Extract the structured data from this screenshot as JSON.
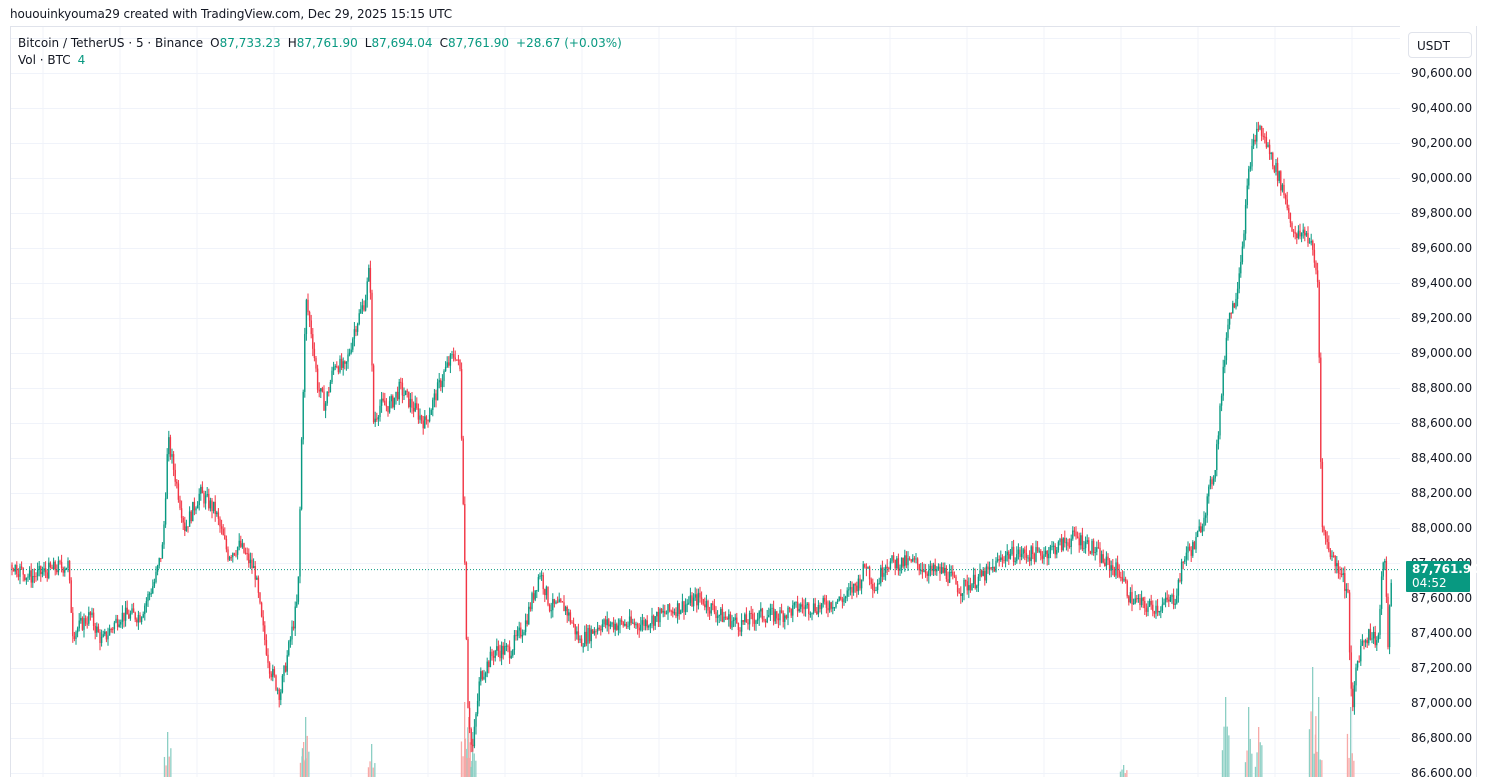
{
  "caption": "hououinkyouma29 created with TradingView.com, Dec 29, 2025 15:15 UTC",
  "legend": {
    "symbol": "Bitcoin / TetherUS · 5 · Binance",
    "open_label": "O",
    "open": "87,733.23",
    "high_label": "H",
    "high": "87,761.90",
    "low_label": "L",
    "low": "87,694.04",
    "close_label": "C",
    "close": "87,761.90",
    "change": "+28.67 (+0.03%)",
    "volume_label": "Vol · BTC",
    "volume_value": "4"
  },
  "axis": {
    "currency": "USDT",
    "ticks": [
      "90,600.00",
      "90,400.00",
      "90,200.00",
      "90,000.00",
      "89,800.00",
      "89,600.00",
      "89,400.00",
      "89,200.00",
      "89,000.00",
      "88,800.00",
      "88,600.00",
      "88,400.00",
      "88,200.00",
      "88,000.00",
      "87,800.00",
      "87,600.00",
      "87,400.00",
      "87,200.00",
      "87,000.00",
      "86,800.00",
      "86,600.00"
    ]
  },
  "last_price": {
    "price": "87,761.90",
    "countdown": "04:52"
  },
  "colors": {
    "up": "#089981",
    "down": "#F23645",
    "up_vol": "#8ccfc4",
    "down_vol": "#f7a9a7",
    "grid": "#f0f3fa",
    "last_line": "#089981"
  },
  "chart_data": {
    "type": "candlestick",
    "title": "Bitcoin / TetherUS · 5 · Binance",
    "xlabel": "",
    "ylabel": "USDT",
    "ylim": [
      86600,
      90700
    ],
    "grid": true,
    "last_price": 87761.9,
    "ohlc_last": {
      "open": 87733.23,
      "high": 87761.9,
      "low": 87694.04,
      "close": 87761.9
    },
    "price_path_anchors": [
      [
        12,
        87790
      ],
      [
        30,
        87720
      ],
      [
        50,
        87760
      ],
      [
        68,
        87790
      ],
      [
        73,
        87400
      ],
      [
        90,
        87500
      ],
      [
        102,
        87350
      ],
      [
        120,
        87500
      ],
      [
        140,
        87500
      ],
      [
        155,
        87700
      ],
      [
        163,
        87900
      ],
      [
        168,
        88500
      ],
      [
        175,
        88300
      ],
      [
        185,
        88000
      ],
      [
        200,
        88200
      ],
      [
        215,
        88100
      ],
      [
        228,
        87850
      ],
      [
        240,
        87900
      ],
      [
        255,
        87750
      ],
      [
        262,
        87450
      ],
      [
        270,
        87200
      ],
      [
        280,
        87050
      ],
      [
        290,
        87350
      ],
      [
        298,
        87600
      ],
      [
        302,
        88600
      ],
      [
        306,
        89300
      ],
      [
        312,
        89100
      ],
      [
        318,
        88800
      ],
      [
        325,
        88700
      ],
      [
        335,
        88950
      ],
      [
        345,
        88900
      ],
      [
        355,
        89150
      ],
      [
        365,
        89300
      ],
      [
        370,
        89500
      ],
      [
        373,
        88600
      ],
      [
        380,
        88700
      ],
      [
        390,
        88700
      ],
      [
        400,
        88800
      ],
      [
        412,
        88700
      ],
      [
        425,
        88600
      ],
      [
        435,
        88750
      ],
      [
        445,
        88900
      ],
      [
        455,
        89000
      ],
      [
        460,
        88900
      ],
      [
        464,
        88000
      ],
      [
        468,
        87000
      ],
      [
        472,
        86700
      ],
      [
        480,
        87150
      ],
      [
        495,
        87300
      ],
      [
        510,
        87300
      ],
      [
        525,
        87450
      ],
      [
        540,
        87750
      ],
      [
        550,
        87550
      ],
      [
        565,
        87550
      ],
      [
        580,
        87350
      ],
      [
        600,
        87450
      ],
      [
        620,
        87450
      ],
      [
        640,
        87450
      ],
      [
        660,
        87500
      ],
      [
        680,
        87550
      ],
      [
        700,
        87600
      ],
      [
        720,
        87500
      ],
      [
        740,
        87450
      ],
      [
        760,
        87500
      ],
      [
        780,
        87500
      ],
      [
        800,
        87550
      ],
      [
        820,
        87550
      ],
      [
        845,
        87600
      ],
      [
        860,
        87700
      ],
      [
        866,
        87800
      ],
      [
        875,
        87650
      ],
      [
        885,
        87800
      ],
      [
        900,
        87800
      ],
      [
        915,
        87800
      ],
      [
        930,
        87750
      ],
      [
        945,
        87750
      ],
      [
        960,
        87650
      ],
      [
        975,
        87700
      ],
      [
        990,
        87750
      ],
      [
        1005,
        87850
      ],
      [
        1020,
        87850
      ],
      [
        1040,
        87850
      ],
      [
        1060,
        87900
      ],
      [
        1075,
        87950
      ],
      [
        1090,
        87900
      ],
      [
        1105,
        87800
      ],
      [
        1120,
        87750
      ],
      [
        1130,
        87600
      ],
      [
        1145,
        87550
      ],
      [
        1160,
        87550
      ],
      [
        1175,
        87600
      ],
      [
        1185,
        87850
      ],
      [
        1195,
        87900
      ],
      [
        1205,
        88100
      ],
      [
        1215,
        88350
      ],
      [
        1222,
        88800
      ],
      [
        1228,
        89200
      ],
      [
        1235,
        89300
      ],
      [
        1242,
        89600
      ],
      [
        1250,
        90100
      ],
      [
        1258,
        90300
      ],
      [
        1266,
        90200
      ],
      [
        1276,
        90050
      ],
      [
        1285,
        89900
      ],
      [
        1295,
        89650
      ],
      [
        1305,
        89700
      ],
      [
        1312,
        89600
      ],
      [
        1318,
        89400
      ],
      [
        1322,
        88000
      ],
      [
        1328,
        87900
      ],
      [
        1335,
        87800
      ],
      [
        1342,
        87750
      ],
      [
        1348,
        87600
      ],
      [
        1352,
        86900
      ],
      [
        1356,
        87200
      ],
      [
        1362,
        87350
      ],
      [
        1370,
        87400
      ],
      [
        1378,
        87350
      ],
      [
        1384,
        87900
      ],
      [
        1388,
        87350
      ],
      [
        1392,
        87761.9
      ]
    ],
    "volume_spikes": [
      [
        167,
        45,
        "up"
      ],
      [
        303,
        35,
        "up"
      ],
      [
        305,
        60,
        "up"
      ],
      [
        371,
        33,
        "down"
      ],
      [
        464,
        75,
        "down"
      ],
      [
        468,
        60,
        "down"
      ],
      [
        472,
        45,
        "up"
      ],
      [
        1123,
        12,
        "up"
      ],
      [
        1225,
        80,
        "up"
      ],
      [
        1248,
        70,
        "up"
      ],
      [
        1258,
        50,
        "up"
      ],
      [
        1312,
        110,
        "down"
      ],
      [
        1318,
        80,
        "down"
      ],
      [
        1350,
        70,
        "down"
      ]
    ]
  }
}
